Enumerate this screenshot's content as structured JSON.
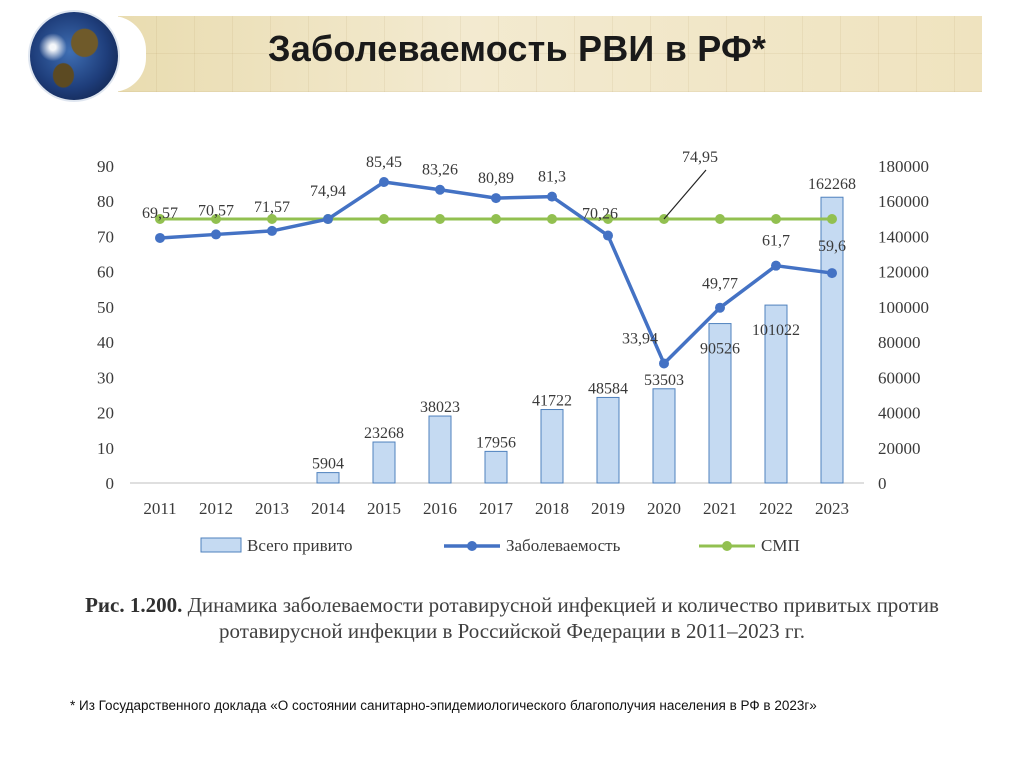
{
  "header": {
    "title": "Заболеваемость РВИ в РФ*"
  },
  "chart_data": {
    "type": "bar+line",
    "categories": [
      "2011",
      "2012",
      "2013",
      "2014",
      "2015",
      "2016",
      "2017",
      "2018",
      "2019",
      "2020",
      "2021",
      "2022",
      "2023"
    ],
    "bars": {
      "name": "Всего привито",
      "axis": "right",
      "values": [
        null,
        null,
        null,
        5904,
        23268,
        38023,
        17956,
        41722,
        48584,
        53503,
        90526,
        101022,
        162268
      ],
      "labels": [
        "",
        "",
        "",
        "5904",
        "23268",
        "38023",
        "17956",
        "41722",
        "48584",
        "53503",
        "90526",
        "101022",
        "162268"
      ],
      "color": "#c5daf2"
    },
    "series": [
      {
        "name": "Заболеваемость",
        "axis": "left",
        "values": [
          69.57,
          70.57,
          71.57,
          74.94,
          85.45,
          83.26,
          80.89,
          81.3,
          70.26,
          33.94,
          49.77,
          61.7,
          59.6
        ],
        "labels": [
          "69,57",
          "70,57",
          "71,57",
          "74,94",
          "85,45",
          "83,26",
          "80,89",
          "81,3",
          "70,26",
          "33,94",
          "49,77",
          "61,7",
          "59,6"
        ],
        "color": "#4472c4"
      },
      {
        "name": "СМП",
        "axis": "left",
        "values": [
          74.95,
          74.95,
          74.95,
          74.95,
          74.95,
          74.95,
          74.95,
          74.95,
          74.95,
          74.95,
          74.95,
          74.95,
          74.95
        ],
        "labels": [
          "74,95"
        ],
        "color": "#92c050"
      }
    ],
    "y_left": {
      "min": 0,
      "max": 90,
      "step": 10,
      "ticks": [
        "0",
        "10",
        "20",
        "30",
        "40",
        "50",
        "60",
        "70",
        "80",
        "90"
      ]
    },
    "y_right": {
      "min": 0,
      "max": 180000,
      "step": 20000,
      "ticks": [
        "0",
        "20000",
        "40000",
        "60000",
        "80000",
        "100000",
        "120000",
        "140000",
        "160000",
        "180000"
      ]
    },
    "legend": {
      "position": "bottom",
      "items": [
        "Всего привито",
        "Заболеваемость",
        "СМП"
      ]
    }
  },
  "figure": {
    "caption_bold": "Рис. 1.200.",
    "caption_text": "Динамика заболеваемости ротавирусной инфекцией и количество привитых против ротавирусной инфекции в Российской Федерации в 2011–2023 гг."
  },
  "footnote": "* Из Государственного доклада «О состоянии санитарно-эпидемиологического благополучия населения в РФ в 2023г»"
}
